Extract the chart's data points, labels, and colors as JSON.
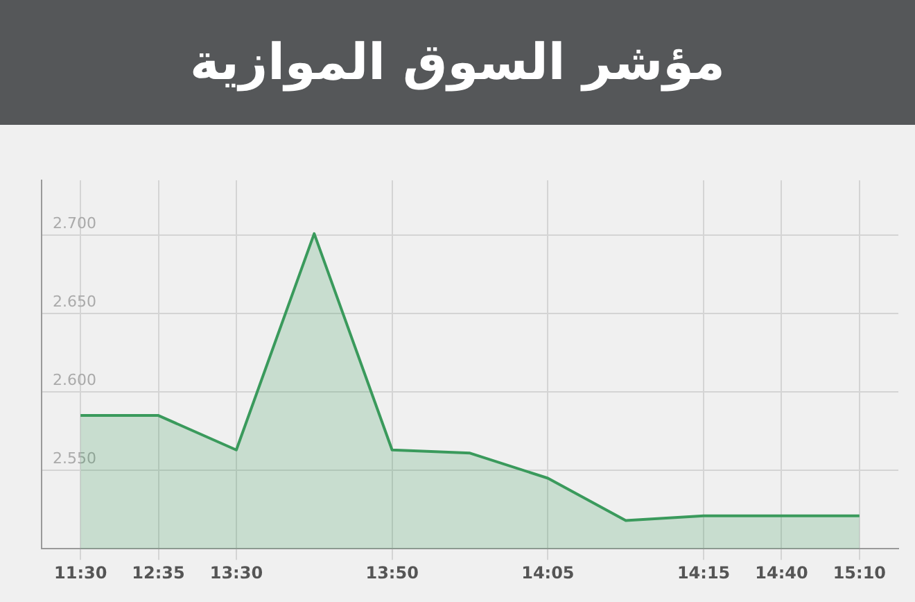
{
  "chart_data": {
    "type": "area",
    "title": "مؤشر السوق الموازية",
    "categories": [
      "11:30",
      "12:35",
      "13:30",
      null,
      "13:50",
      null,
      "14:05",
      null,
      "14:15",
      "14:40",
      "15:10"
    ],
    "values": [
      2.585,
      2.585,
      2.563,
      2.701,
      2.563,
      2.561,
      2.545,
      2.518,
      2.521,
      2.521,
      2.521
    ],
    "color": "#3a9a5c",
    "ylim": [
      2.5,
      2.735
    ],
    "yticks": [
      {
        "value": 2.55,
        "label": "2.550"
      },
      {
        "value": 2.6,
        "label": "2.600"
      },
      {
        "value": 2.65,
        "label": "2.650"
      },
      {
        "value": 2.7,
        "label": "2.700"
      }
    ],
    "grid": true
  }
}
